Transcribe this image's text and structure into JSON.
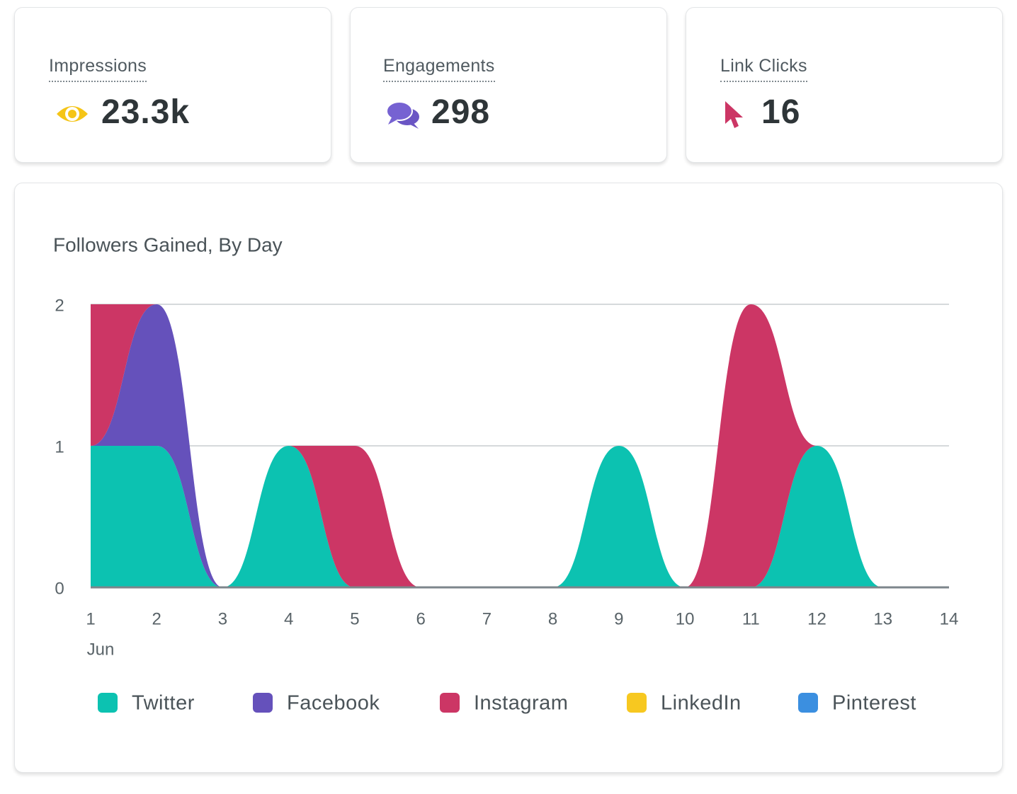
{
  "cards": [
    {
      "label": "Impressions",
      "value": "23.3k"
    },
    {
      "label": "Engagements",
      "value": "298"
    },
    {
      "label": "Link Clicks",
      "value": "16"
    }
  ],
  "chart_data": {
    "type": "area",
    "stacked": true,
    "title": "Followers Gained, By Day",
    "x": [
      1,
      2,
      3,
      4,
      5,
      6,
      7,
      8,
      9,
      10,
      11,
      12,
      13,
      14
    ],
    "xticks": [
      1,
      2,
      3,
      4,
      5,
      6,
      7,
      8,
      9,
      10,
      11,
      12,
      13,
      14
    ],
    "xlim": [
      1,
      14
    ],
    "xlabel": "Jun",
    "ylim": [
      0,
      2
    ],
    "yticks": [
      0,
      1,
      2
    ],
    "grid": true,
    "series": [
      {
        "name": "Twitter",
        "color": "#0cc2b1",
        "values": [
          1,
          1,
          0,
          1,
          0,
          0,
          0,
          0,
          1,
          0,
          0,
          1,
          0,
          0
        ]
      },
      {
        "name": "Facebook",
        "color": "#6551bb",
        "values": [
          0,
          1,
          0,
          0,
          0,
          0,
          0,
          0,
          0,
          0,
          0,
          0,
          0,
          0
        ]
      },
      {
        "name": "Instagram",
        "color": "#cc3665",
        "values": [
          1,
          0,
          0,
          0,
          1,
          0,
          0,
          0,
          0,
          0,
          2,
          0,
          0,
          0
        ]
      },
      {
        "name": "LinkedIn",
        "color": "#f7c820",
        "values": [
          0,
          0,
          0,
          0,
          0,
          0,
          0,
          0,
          0,
          0,
          0,
          0,
          0,
          0
        ]
      },
      {
        "name": "Pinterest",
        "color": "#3b8fe0",
        "values": [
          0,
          0,
          0,
          0,
          0,
          0,
          0,
          0,
          0,
          0,
          0,
          0,
          0,
          0
        ]
      }
    ]
  }
}
